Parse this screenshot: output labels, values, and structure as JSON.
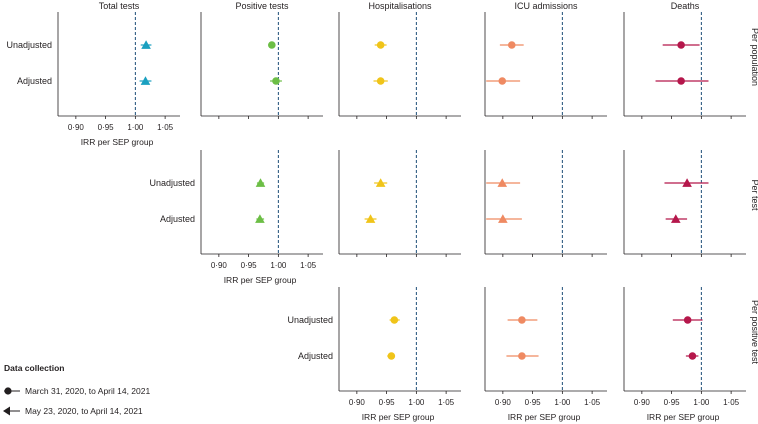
{
  "chart_data": {
    "type": "forest",
    "axis": {
      "label": "IRR per SEP group",
      "xlim": [
        0.87,
        1.075
      ],
      "ticks": [
        0.9,
        0.95,
        1.0,
        1.05
      ],
      "tick_labels": [
        "0·90",
        "0·95",
        "1·00",
        "1·05"
      ],
      "reference": 1.0
    },
    "columns": [
      {
        "key": "total",
        "title": "Total tests",
        "color": "#1aa0c0"
      },
      {
        "key": "positive",
        "title": "Positive tests",
        "color": "#6cbe45"
      },
      {
        "key": "hosp",
        "title": "Hospitalisations",
        "color": "#f0c419"
      },
      {
        "key": "icu",
        "title": "ICU admissions",
        "color": "#ef8a62"
      },
      {
        "key": "deaths",
        "title": "Deaths",
        "color": "#b5174b"
      }
    ],
    "row_labels": [
      "Unadjusted",
      "Adjusted"
    ],
    "panels": [
      {
        "row": 0,
        "side_label": "Per population",
        "columns": [
          "total",
          "positive",
          "hosp",
          "icu",
          "deaths"
        ],
        "points": {
          "total": [
            {
              "est": 1.018,
              "lo": 1.009,
              "hi": 1.027,
              "marker": "triangle"
            },
            {
              "est": 1.017,
              "lo": 1.007,
              "hi": 1.027,
              "marker": "triangle"
            }
          ],
          "positive": [
            {
              "est": 0.989,
              "lo": 0.983,
              "hi": 0.995,
              "marker": "circle"
            },
            {
              "est": 0.996,
              "lo": 0.986,
              "hi": 1.006,
              "marker": "circle"
            }
          ],
          "hosp": [
            {
              "est": 0.94,
              "lo": 0.93,
              "hi": 0.95,
              "marker": "circle"
            },
            {
              "est": 0.94,
              "lo": 0.928,
              "hi": 0.952,
              "marker": "circle"
            }
          ],
          "icu": [
            {
              "est": 0.915,
              "lo": 0.895,
              "hi": 0.935,
              "marker": "circle"
            },
            {
              "est": 0.899,
              "lo": 0.872,
              "hi": 0.929,
              "marker": "circle"
            }
          ],
          "deaths": [
            {
              "est": 0.966,
              "lo": 0.935,
              "hi": 0.997,
              "marker": "circle"
            },
            {
              "est": 0.966,
              "lo": 0.923,
              "hi": 1.012,
              "marker": "circle"
            }
          ]
        },
        "axis_labels": [
          "total"
        ]
      },
      {
        "row": 1,
        "side_label": "Per test",
        "columns": [
          "positive",
          "hosp",
          "icu",
          "deaths"
        ],
        "points": {
          "positive": [
            {
              "est": 0.97,
              "lo": 0.964,
              "hi": 0.976,
              "marker": "triangle"
            },
            {
              "est": 0.969,
              "lo": 0.963,
              "hi": 0.976,
              "marker": "triangle"
            }
          ],
          "hosp": [
            {
              "est": 0.94,
              "lo": 0.929,
              "hi": 0.951,
              "marker": "triangle"
            },
            {
              "est": 0.923,
              "lo": 0.913,
              "hi": 0.933,
              "marker": "triangle"
            }
          ],
          "icu": [
            {
              "est": 0.899,
              "lo": 0.872,
              "hi": 0.929,
              "marker": "triangle"
            },
            {
              "est": 0.9,
              "lo": 0.872,
              "hi": 0.932,
              "marker": "triangle"
            }
          ],
          "deaths": [
            {
              "est": 0.976,
              "lo": 0.938,
              "hi": 1.012,
              "marker": "triangle"
            },
            {
              "est": 0.957,
              "lo": 0.94,
              "hi": 0.976,
              "marker": "triangle"
            }
          ]
        },
        "axis_labels": [
          "positive"
        ]
      },
      {
        "row": 2,
        "side_label": "Per positive test",
        "columns": [
          "hosp",
          "icu",
          "deaths"
        ],
        "points": {
          "hosp": [
            {
              "est": 0.963,
              "lo": 0.955,
              "hi": 0.972,
              "marker": "circle"
            },
            {
              "est": 0.958,
              "lo": 0.951,
              "hi": 0.964,
              "marker": "circle"
            }
          ],
          "icu": [
            {
              "est": 0.932,
              "lo": 0.908,
              "hi": 0.958,
              "marker": "circle"
            },
            {
              "est": 0.932,
              "lo": 0.906,
              "hi": 0.96,
              "marker": "circle"
            }
          ],
          "deaths": [
            {
              "est": 0.977,
              "lo": 0.952,
              "hi": 1.002,
              "marker": "circle"
            },
            {
              "est": 0.985,
              "lo": 0.974,
              "hi": 0.995,
              "marker": "circle"
            }
          ]
        },
        "axis_labels": [
          "hosp",
          "icu",
          "deaths"
        ]
      }
    ],
    "legend": {
      "title": "Data collection",
      "items": [
        {
          "marker": "circle",
          "label": "March 31, 2020, to April 14, 2021"
        },
        {
          "marker": "triangle",
          "label": "May 23, 2020, to April 14, 2021"
        }
      ]
    }
  }
}
